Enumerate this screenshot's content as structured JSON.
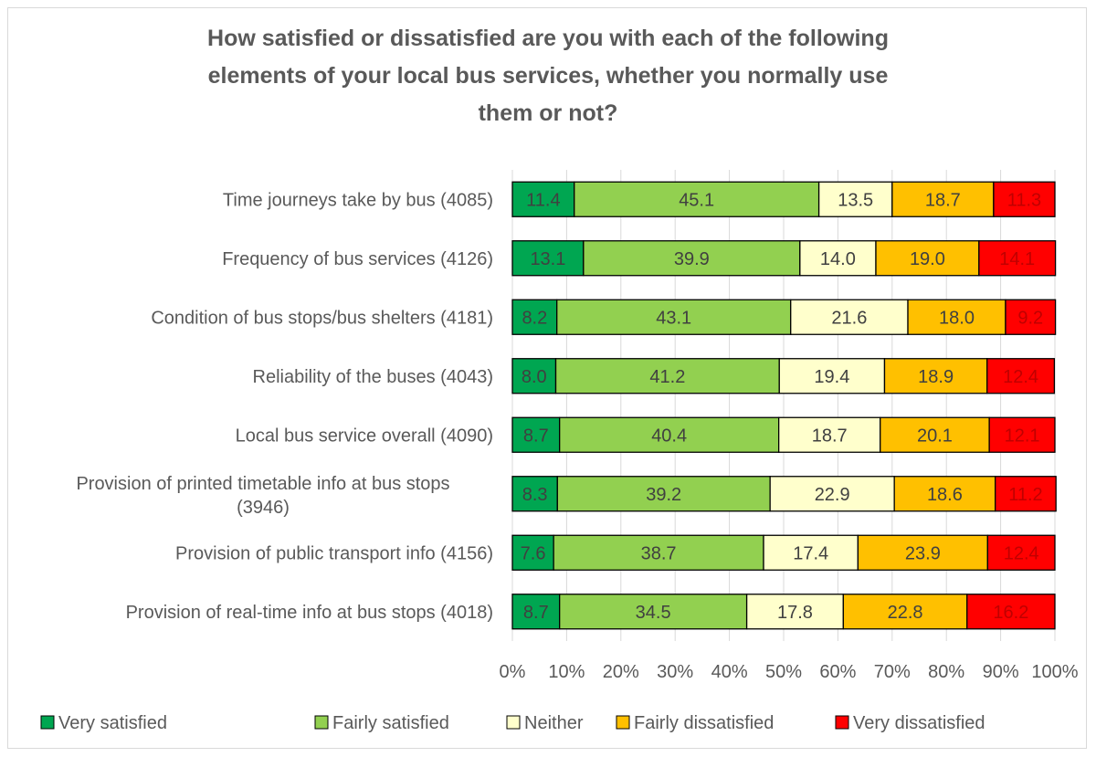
{
  "chart_data": {
    "type": "bar",
    "orientation": "horizontal",
    "stacked": true,
    "title": "How satisfied or dissatisfied are you with each of the following elements of your local bus services, whether you normally use them or not?",
    "categories": [
      "Time journeys take by bus (4085)",
      "Frequency of bus services (4126)",
      "Condition of bus stops/bus shelters (4181)",
      "Reliability of the buses (4043)",
      "Local bus service overall (4090)",
      "Provision of printed timetable info at bus stops (3946)",
      "Provision of public transport info (4156)",
      "Provision of real-time info at bus stops  (4018)"
    ],
    "series": [
      {
        "name": "Very satisfied",
        "color": "#00a651",
        "label_color": "#404040",
        "values": [
          11.4,
          13.1,
          8.2,
          8.0,
          8.7,
          8.3,
          7.6,
          8.7
        ]
      },
      {
        "name": "Fairly satisfied",
        "color": "#92d050",
        "label_color": "#404040",
        "values": [
          45.1,
          39.9,
          43.1,
          41.2,
          40.4,
          39.2,
          38.7,
          34.5
        ]
      },
      {
        "name": "Neither",
        "color": "#ffffcc",
        "label_color": "#404040",
        "values": [
          13.5,
          14.0,
          21.6,
          19.4,
          18.7,
          22.9,
          17.4,
          17.8
        ]
      },
      {
        "name": "Fairly dissatisfied",
        "color": "#ffc000",
        "label_color": "#404040",
        "values": [
          18.7,
          19.0,
          18.0,
          18.9,
          20.1,
          18.6,
          23.9,
          22.8
        ]
      },
      {
        "name": "Very dissatisfied",
        "color": "#ff0000",
        "label_color": "#c00000",
        "values": [
          11.3,
          14.1,
          9.2,
          12.4,
          12.1,
          11.2,
          12.4,
          16.2
        ]
      }
    ],
    "xlim": [
      0,
      100
    ],
    "x_ticks": [
      "0%",
      "10%",
      "20%",
      "30%",
      "40%",
      "50%",
      "60%",
      "70%",
      "80%",
      "90%",
      "100%"
    ],
    "grid": true,
    "legend_position": "bottom"
  }
}
